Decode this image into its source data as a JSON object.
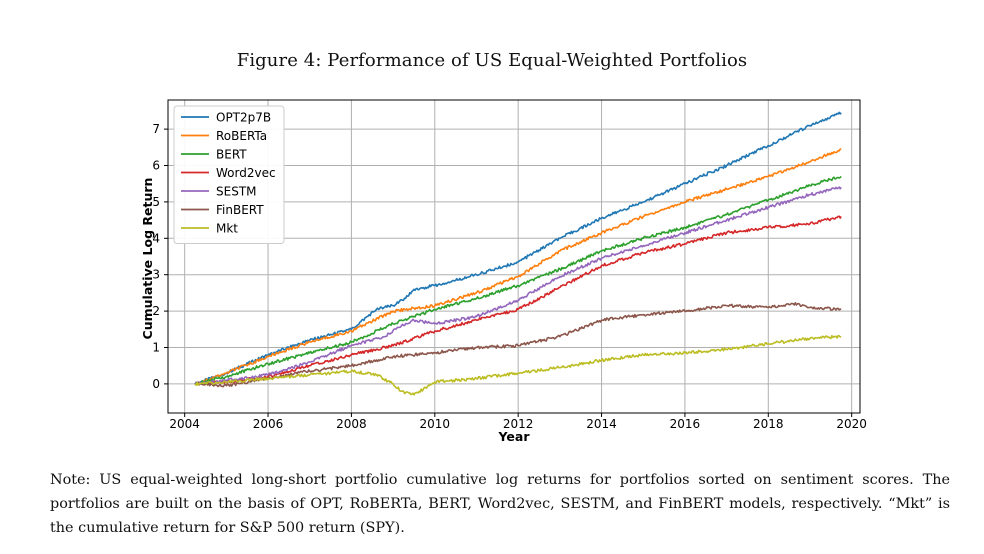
{
  "figure": {
    "title": "Figure 4: Performance of US Equal-Weighted Portfolios",
    "note": "Note: US equal-weighted long-short portfolio cumulative log returns for portfolios sorted on sentiment scores. The portfolios are built on the basis of OPT, RoBERTa, BERT, Word2vec, SESTM, and FinBERT models, respectively. “Mkt” is the cumulative return for S&P 500 return (SPY)."
  },
  "chart_data": {
    "type": "line",
    "title": "",
    "xlabel": "Year",
    "ylabel": "Cumulative Log Return",
    "xlim": [
      2003.6,
      2020.2
    ],
    "ylim": [
      -0.8,
      7.8
    ],
    "xticks": [
      2004,
      2006,
      2008,
      2010,
      2012,
      2014,
      2016,
      2018,
      2020
    ],
    "yticks": [
      0,
      1,
      2,
      3,
      4,
      5,
      6,
      7
    ],
    "grid": true,
    "legend_position": "upper-left",
    "series": [
      {
        "name": "OPT2p7B",
        "color": "#1f77b4",
        "x": [
          2004.25,
          2005,
          2006,
          2007,
          2008,
          2008.6,
          2009,
          2009.3,
          2009.5,
          2010,
          2011,
          2012,
          2013,
          2014,
          2015,
          2016,
          2017,
          2018,
          2019,
          2019.75
        ],
        "y": [
          0,
          0.3,
          0.8,
          1.2,
          1.5,
          2.05,
          2.15,
          2.35,
          2.6,
          2.7,
          3.0,
          3.35,
          4.0,
          4.55,
          5.0,
          5.5,
          6.0,
          6.55,
          7.1,
          7.45
        ]
      },
      {
        "name": "RoBERTa",
        "color": "#ff7f0e",
        "x": [
          2004.25,
          2005,
          2006,
          2007,
          2008,
          2009,
          2010,
          2011,
          2012,
          2013,
          2014,
          2015,
          2016,
          2017,
          2018,
          2019,
          2019.75
        ],
        "y": [
          0,
          0.3,
          0.75,
          1.15,
          1.45,
          2.0,
          2.15,
          2.5,
          2.95,
          3.65,
          4.15,
          4.6,
          5.0,
          5.35,
          5.7,
          6.1,
          6.45
        ]
      },
      {
        "name": "BERT",
        "color": "#2ca02c",
        "x": [
          2004.25,
          2005,
          2006,
          2007,
          2008,
          2009,
          2010,
          2011,
          2012,
          2013,
          2014,
          2015,
          2016,
          2017,
          2018,
          2019,
          2019.75
        ],
        "y": [
          0,
          0.2,
          0.55,
          0.85,
          1.15,
          1.65,
          2.05,
          2.35,
          2.7,
          3.15,
          3.65,
          4.0,
          4.3,
          4.65,
          5.05,
          5.45,
          5.7
        ]
      },
      {
        "name": "Word2vec",
        "color": "#d62728",
        "x": [
          2004.25,
          2005,
          2006,
          2007,
          2008,
          2009,
          2010,
          2011,
          2012,
          2013,
          2014,
          2015,
          2016,
          2017,
          2018,
          2019,
          2019.75
        ],
        "y": [
          0,
          0.05,
          0.2,
          0.5,
          0.8,
          1.05,
          1.45,
          1.75,
          2.05,
          2.65,
          3.25,
          3.6,
          3.85,
          4.15,
          4.3,
          4.4,
          4.6
        ]
      },
      {
        "name": "SESTM",
        "color": "#9467bd",
        "x": [
          2004.25,
          2005,
          2006,
          2007,
          2008,
          2008.8,
          2009.2,
          2009.5,
          2010,
          2011,
          2012,
          2013,
          2014,
          2015,
          2016,
          2017,
          2018,
          2019,
          2019.75
        ],
        "y": [
          0,
          0.1,
          0.25,
          0.6,
          1.05,
          1.3,
          1.6,
          1.75,
          1.65,
          1.85,
          2.3,
          2.95,
          3.45,
          3.8,
          4.15,
          4.5,
          4.85,
          5.2,
          5.4
        ]
      },
      {
        "name": "FinBERT",
        "color": "#8c564b",
        "x": [
          2004.25,
          2005,
          2006,
          2007,
          2008,
          2009,
          2010,
          2011,
          2012,
          2013,
          2014,
          2015,
          2016,
          2017,
          2018,
          2018.6,
          2019,
          2019.75
        ],
        "y": [
          0,
          -0.05,
          0.15,
          0.35,
          0.5,
          0.75,
          0.85,
          1.0,
          1.05,
          1.3,
          1.75,
          1.9,
          2.0,
          2.15,
          2.1,
          2.2,
          2.1,
          2.05
        ]
      },
      {
        "name": "Mkt",
        "color": "#bcbd22",
        "x": [
          2004.25,
          2005,
          2006,
          2007,
          2008,
          2008.6,
          2009,
          2009.2,
          2009.5,
          2010,
          2011,
          2012,
          2013,
          2014,
          2015,
          2016,
          2017,
          2018,
          2019,
          2019.75
        ],
        "y": [
          0,
          0.05,
          0.15,
          0.25,
          0.35,
          0.25,
          0.0,
          -0.2,
          -0.3,
          0.05,
          0.15,
          0.3,
          0.45,
          0.65,
          0.8,
          0.85,
          0.95,
          1.1,
          1.25,
          1.3
        ]
      }
    ]
  }
}
